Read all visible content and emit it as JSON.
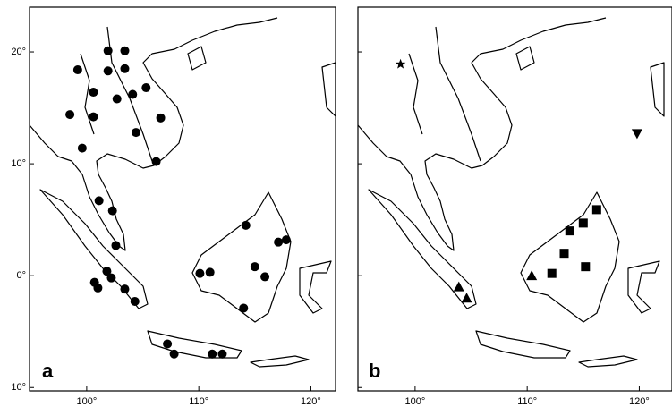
{
  "axes": {
    "xlim": [
      94.9,
      122.2
    ],
    "ylim": [
      -10.3,
      24
    ],
    "xticks": [
      {
        "value": 100,
        "label": "100°"
      },
      {
        "value": 110,
        "label": "110°"
      },
      {
        "value": 120,
        "label": "120°"
      }
    ],
    "yticks": [
      {
        "value": 20,
        "label": "20°"
      },
      {
        "value": 10,
        "label": "10°"
      },
      {
        "value": 0,
        "label": "0°"
      },
      {
        "value": -10,
        "label": "10°"
      }
    ]
  },
  "panels": [
    {
      "label": "a",
      "markers": [
        {
          "shape": "circle",
          "points": [
            [
              101.9,
              20.1
            ],
            [
              103.4,
              20.1
            ],
            [
              99.2,
              18.4
            ],
            [
              101.9,
              18.3
            ],
            [
              103.4,
              18.5
            ],
            [
              100.6,
              16.4
            ],
            [
              102.7,
              15.8
            ],
            [
              104.1,
              16.2
            ],
            [
              105.3,
              16.8
            ],
            [
              98.5,
              14.4
            ],
            [
              100.6,
              14.2
            ],
            [
              104.4,
              12.8
            ],
            [
              106.6,
              14.1
            ],
            [
              99.6,
              11.4
            ],
            [
              106.2,
              10.2
            ],
            [
              101.1,
              6.7
            ],
            [
              102.3,
              5.8
            ],
            [
              102.6,
              2.7
            ],
            [
              101.8,
              0.4
            ],
            [
              102.2,
              -0.2
            ],
            [
              100.7,
              -0.6
            ],
            [
              101.0,
              -1.1
            ],
            [
              103.4,
              -1.2
            ],
            [
              104.3,
              -2.3
            ],
            [
              114.2,
              4.5
            ],
            [
              117.1,
              3.0
            ],
            [
              117.8,
              3.2
            ],
            [
              110.1,
              0.2
            ],
            [
              111.0,
              0.3
            ],
            [
              115.0,
              0.8
            ],
            [
              115.9,
              -0.1
            ],
            [
              114.0,
              -2.9
            ],
            [
              107.2,
              -6.1
            ],
            [
              107.8,
              -7.0
            ],
            [
              111.2,
              -7.0
            ],
            [
              112.1,
              -7.0
            ]
          ]
        }
      ]
    },
    {
      "label": "b",
      "markers": [
        {
          "shape": "star",
          "points": [
            [
              98.7,
              18.9
            ]
          ]
        },
        {
          "shape": "triangle-down",
          "points": [
            [
              119.8,
              12.7
            ]
          ]
        },
        {
          "shape": "square",
          "points": [
            [
              116.2,
              5.9
            ],
            [
              115.0,
              4.7
            ],
            [
              113.8,
              4.0
            ],
            [
              113.3,
              2.0
            ],
            [
              112.2,
              0.2
            ],
            [
              115.2,
              0.8
            ]
          ]
        },
        {
          "shape": "triangle",
          "points": [
            [
              110.4,
              0.0
            ],
            [
              103.9,
              -1.0
            ],
            [
              104.6,
              -2.0
            ]
          ]
        }
      ]
    }
  ]
}
